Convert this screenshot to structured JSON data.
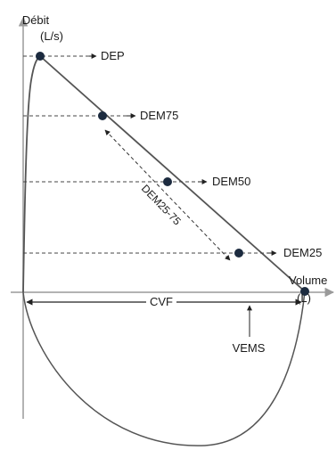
{
  "axes": {
    "y_label_line1": "Débit",
    "y_label_line2": "(L/s)",
    "x_label_line1": "Volume",
    "x_label_line2": "(L)"
  },
  "points": {
    "dep": "DEP",
    "dem75": "DEM75",
    "dem50": "DEM50",
    "dem25": "DEM25"
  },
  "annotations": {
    "range": "DEM25-75",
    "cvf": "CVF",
    "vems": "VEMS"
  },
  "colors": {
    "curve": "#555555",
    "axis": "#9a9a9a",
    "marker": "#1c2b3f",
    "dash": "#444444"
  }
}
